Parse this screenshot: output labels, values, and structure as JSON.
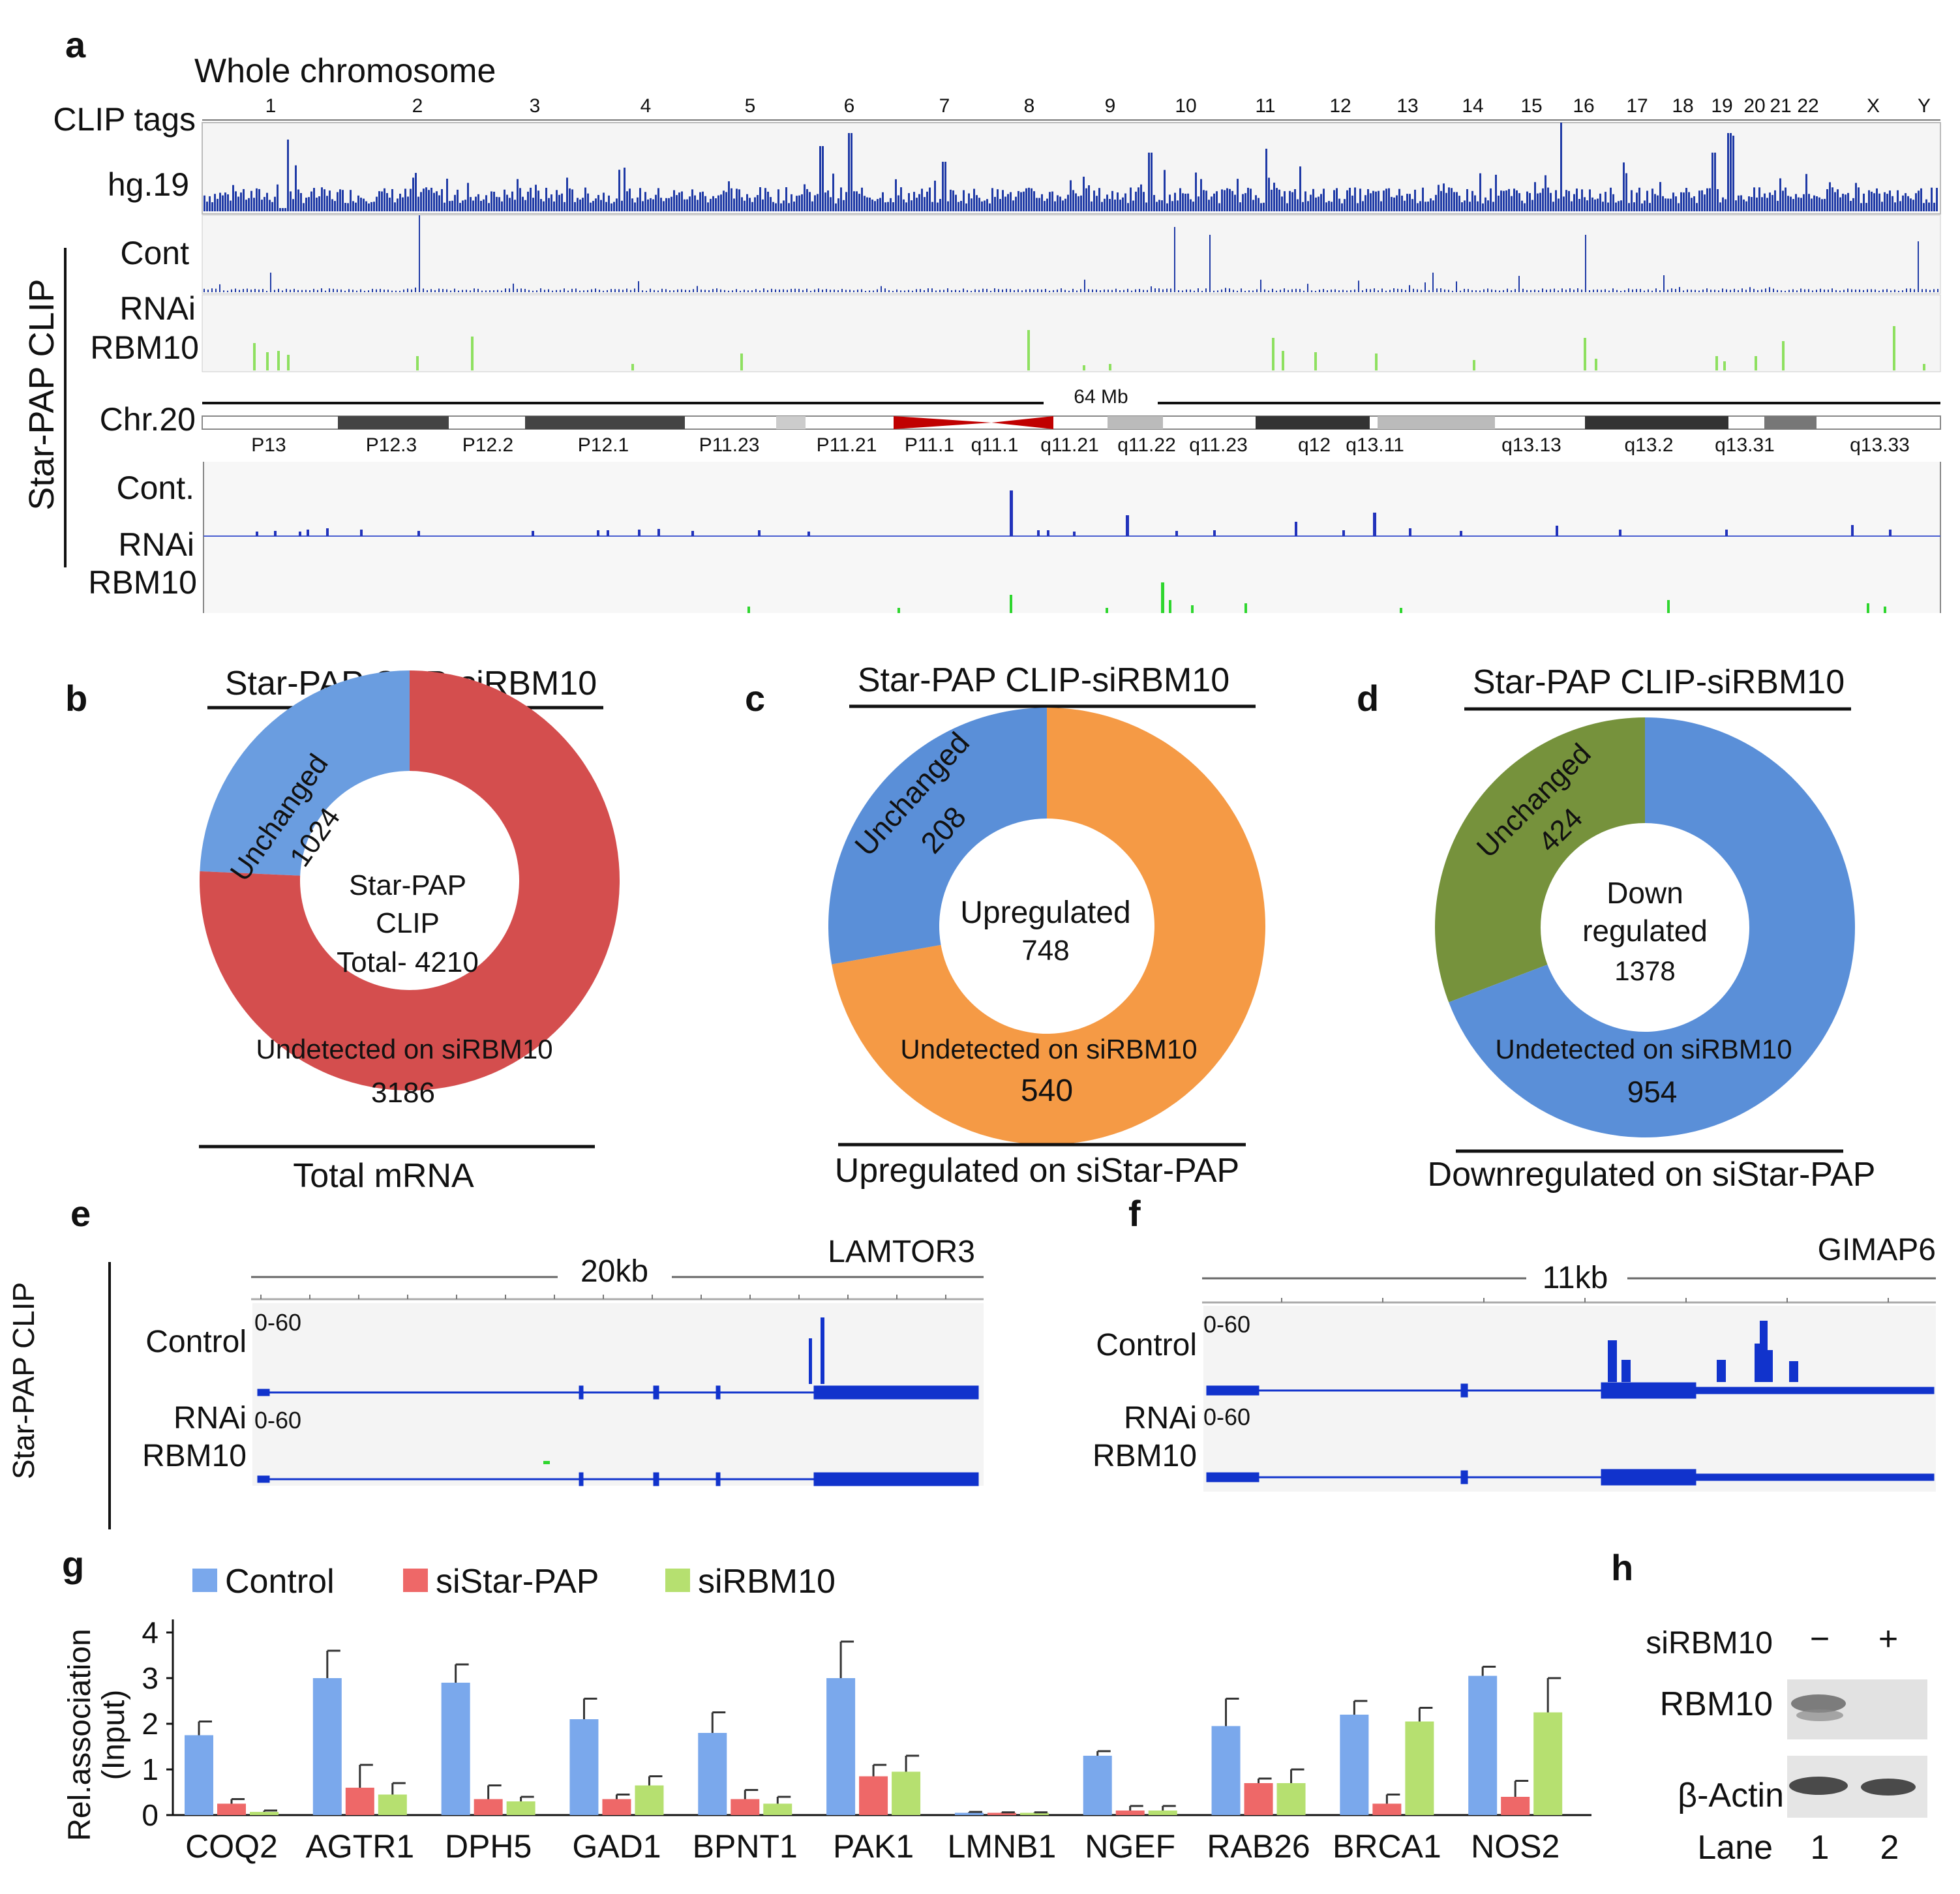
{
  "panels": {
    "a": "a",
    "b": "b",
    "c": "c",
    "d": "d",
    "e": "e",
    "f": "f",
    "g": "g",
    "h": "h"
  },
  "panel_a": {
    "title": "Whole chromosome",
    "row_labels": [
      "CLIP tags",
      "hg.19",
      "Cont",
      "RNAi",
      "RBM10",
      "Chr.20",
      "Cont.",
      "RNAi",
      "RBM10"
    ],
    "side_label": "Star-PAP CLIP",
    "chromosomes": [
      "1",
      "2",
      "3",
      "4",
      "5",
      "6",
      "7",
      "8",
      "9",
      "10",
      "11",
      "12",
      "13",
      "14",
      "15",
      "16",
      "17",
      "18",
      "19",
      "20",
      "21",
      "22",
      "X",
      "Y"
    ],
    "chr20_size": "64 Mb",
    "bands": [
      "P13",
      "P12.3",
      "P12.2",
      "P12.1",
      "P11.23",
      "P11.21",
      "P11.1",
      "q11.1",
      "q11.21",
      "q11.22",
      "q11.23",
      "q12",
      "q13.11",
      "q13.13",
      "q13.2",
      "q13.31",
      "q13.33"
    ]
  },
  "donuts": [
    {
      "id": "b",
      "title": "Star-PAP CLIP-siRBM10",
      "center": [
        "Star-PAP",
        "CLIP",
        "Total- 4210"
      ],
      "seg_a": {
        "label": "Unchanged",
        "value": "1024",
        "color": "#6a9de0",
        "frac": 0.243
      },
      "seg_b": {
        "label": "Undetected on siRBM10",
        "value": "3186",
        "color": "#d44e4e",
        "frac": 0.757
      },
      "bottom": "Total mRNA"
    },
    {
      "id": "c",
      "title": "Star-PAP CLIP-siRBM10",
      "center": [
        "Upregulated",
        "748"
      ],
      "seg_a": {
        "label": "Unchanged",
        "value": "208",
        "color": "#5a8fd8",
        "frac": 0.278
      },
      "seg_b": {
        "label": "Undetected on siRBM10",
        "value": "540",
        "color": "#f59a45",
        "frac": 0.722
      },
      "bottom": "Upregulated on siStar-PAP"
    },
    {
      "id": "d",
      "title": "Star-PAP CLIP-siRBM10",
      "center": [
        "Down",
        "regulated",
        "1378"
      ],
      "seg_a": {
        "label": "Unchanged",
        "value": "424",
        "color": "#76923c",
        "frac": 0.308
      },
      "seg_b": {
        "label": "Undetected on siRBM10",
        "value": "954",
        "color": "#5a8fd8",
        "frac": 0.692
      },
      "bottom": "Downregulated on siStar-PAP"
    }
  ],
  "panel_e": {
    "scale": "20kb",
    "gene": "LAMTOR3",
    "side_label": "Star-PAP CLIP",
    "rows": [
      "Control",
      "RNAi",
      "RBM10"
    ],
    "range": "0-60"
  },
  "panel_f": {
    "scale": "11kb",
    "gene": "GIMAP6",
    "rows": [
      "Control",
      "RNAi",
      "RBM10"
    ],
    "range": "0-60"
  },
  "chart_data": {
    "type": "bar",
    "ylabel": "Rel.association (Input)",
    "ylim": [
      0,
      4
    ],
    "yticks": [
      "0",
      "1",
      "2",
      "3",
      "4"
    ],
    "categories": [
      "COQ2",
      "AGTR1",
      "DPH5",
      "GAD1",
      "BPNT1",
      "PAK1",
      "LMNB1",
      "NGEF",
      "RAB26",
      "BRCA1",
      "NOS2"
    ],
    "series": [
      {
        "name": "Control",
        "color": "#7aa8ec",
        "values": [
          1.75,
          3.0,
          2.9,
          2.1,
          1.8,
          3.0,
          0.05,
          1.3,
          1.95,
          2.2,
          3.05
        ],
        "errors": [
          0.3,
          0.6,
          0.4,
          0.45,
          0.45,
          0.8,
          0.02,
          0.1,
          0.6,
          0.3,
          0.2
        ]
      },
      {
        "name": "siStar-PAP",
        "color": "#ee6868",
        "values": [
          0.25,
          0.6,
          0.35,
          0.35,
          0.35,
          0.85,
          0.05,
          0.1,
          0.7,
          0.25,
          0.4
        ],
        "errors": [
          0.1,
          0.5,
          0.3,
          0.1,
          0.2,
          0.25,
          0.01,
          0.1,
          0.1,
          0.2,
          0.35
        ]
      },
      {
        "name": "siRBM10",
        "color": "#b6e070",
        "values": [
          0.07,
          0.45,
          0.3,
          0.65,
          0.25,
          0.95,
          0.05,
          0.1,
          0.7,
          2.05,
          2.25
        ],
        "errors": [
          0.03,
          0.25,
          0.1,
          0.2,
          0.15,
          0.35,
          0.01,
          0.1,
          0.3,
          0.3,
          0.75
        ]
      }
    ]
  },
  "panel_h": {
    "treatment": "siRBM10",
    "minus": "−",
    "plus": "+",
    "rows": [
      "RBM10",
      "β-Actin"
    ],
    "lane_label": "Lane",
    "lanes": [
      "1",
      "2"
    ]
  }
}
